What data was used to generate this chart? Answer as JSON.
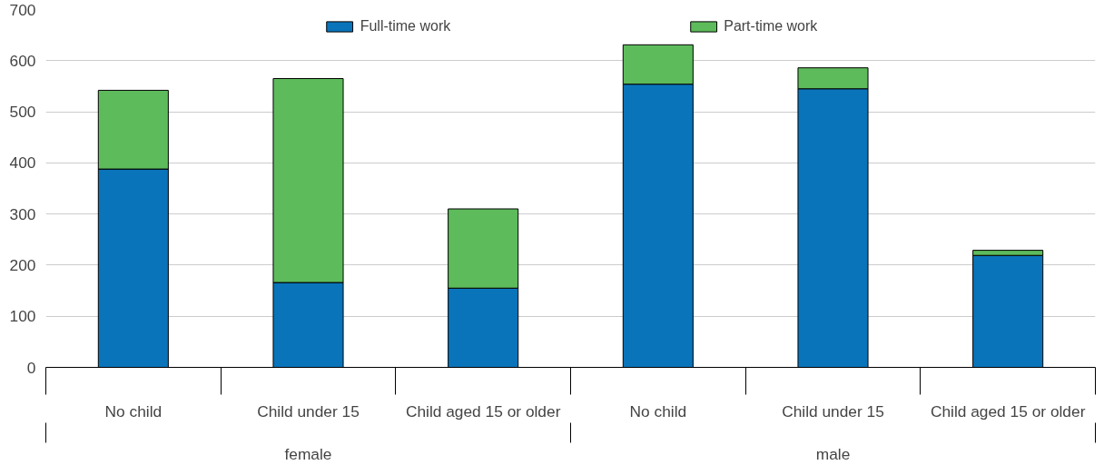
{
  "chart_data": {
    "type": "bar",
    "stacked": true,
    "categories": [
      "No child",
      "Child under 15",
      "Child aged 15 or older",
      "No child",
      "Child under 15",
      "Child aged 15 or older"
    ],
    "annotations": [
      "female",
      "male"
    ],
    "series": [
      {
        "name": "Full-time work",
        "color": "#0a74ba",
        "values": [
          388,
          166,
          155,
          554,
          545,
          219
        ]
      },
      {
        "name": "Part-time work",
        "color": "#5dbb5b",
        "values": [
          154,
          399,
          155,
          77,
          41,
          10
        ]
      }
    ],
    "ylim": [
      0,
      700
    ],
    "yticks": [
      0,
      100,
      200,
      300,
      400,
      500,
      600,
      700
    ],
    "grid": "y",
    "legend": "top"
  }
}
